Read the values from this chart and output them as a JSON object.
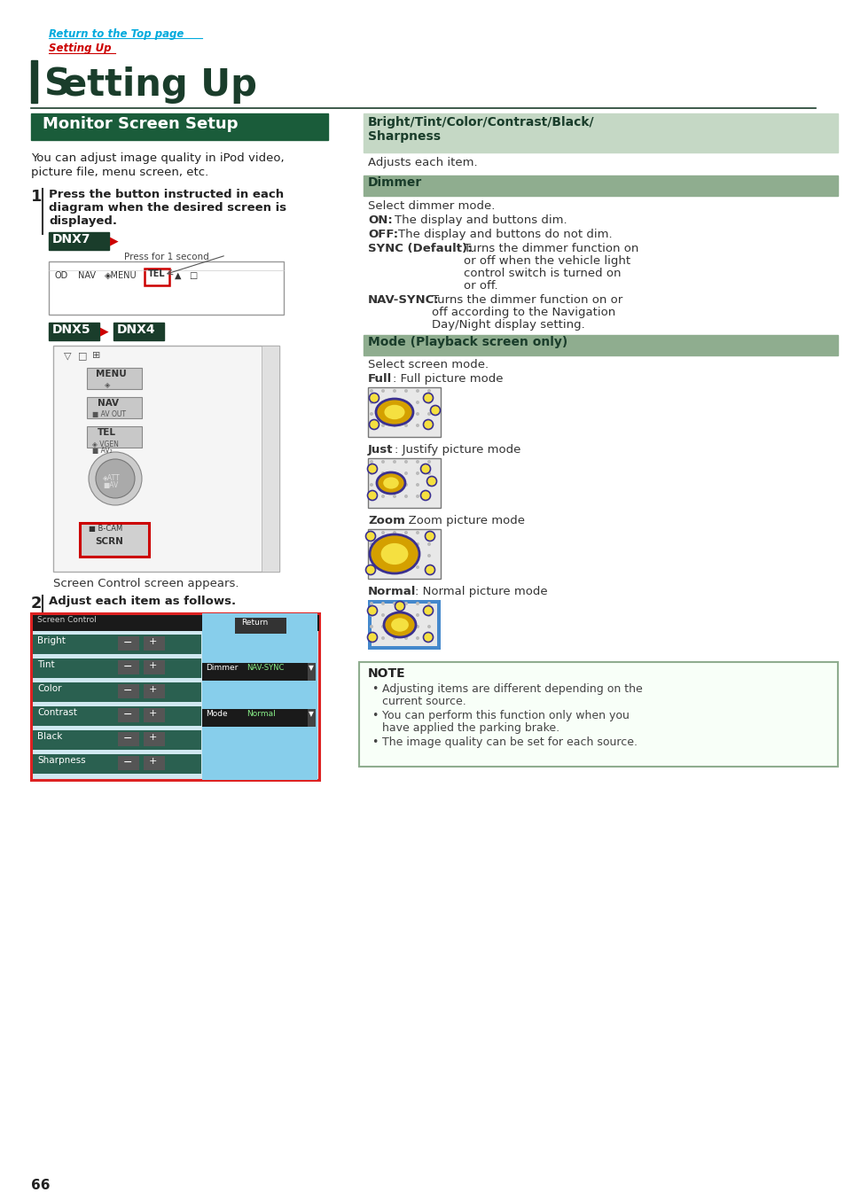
{
  "page_number": "66",
  "bg_color": "#ffffff",
  "link1_text": "Return to the Top page",
  "link1_color": "#00aadd",
  "link2_text": "Setting Up",
  "link2_color": "#cc0000",
  "section_title_color": "#1a3d2b",
  "section_bar_color": "#1a3d2b",
  "subsection_bg": "#1a5c3a",
  "subsection_text_color": "#ffffff",
  "subsection_title": "Monitor Screen Setup",
  "intro_text1": "You can adjust image quality in iPod video,",
  "intro_text2": "picture file, menu screen, etc.",
  "screen_control_text": "Screen Control screen appears.",
  "right_header1_bg": "#c5d8c5",
  "right_header2_bg": "#8fad8f",
  "note_border_color": "#8fad8f",
  "note_title": "NOTE",
  "note_items": [
    "Adjusting items are different depending on the current source.",
    "You can perform this function only when you have applied the parking brake.",
    "The image quality can be set for each source."
  ],
  "divider_color": "#1a3d2b",
  "rows": [
    "Bright",
    "Tint",
    "Color",
    "Contrast",
    "Black",
    "Sharpness"
  ]
}
